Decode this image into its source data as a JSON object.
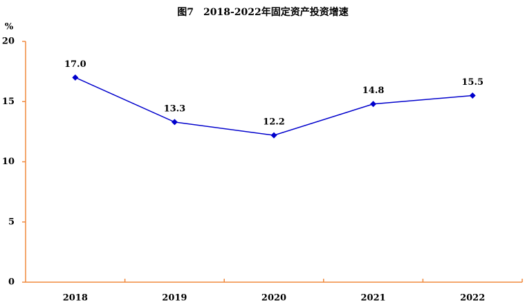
{
  "chart_data": {
    "type": "line",
    "title": "图7　2018-2022年固定资产投资增速",
    "ylabel": "%",
    "categories": [
      "2018",
      "2019",
      "2020",
      "2021",
      "2022"
    ],
    "values": [
      17.0,
      13.3,
      12.2,
      14.8,
      15.5
    ],
    "value_labels": [
      "17.0",
      "13.3",
      "12.2",
      "14.8",
      "15.5"
    ],
    "color": "#0000cc",
    "axis_color": "#f0883c",
    "ylim": [
      0,
      20
    ],
    "yticks": [
      0,
      5,
      10,
      15,
      20
    ],
    "grid": false
  }
}
